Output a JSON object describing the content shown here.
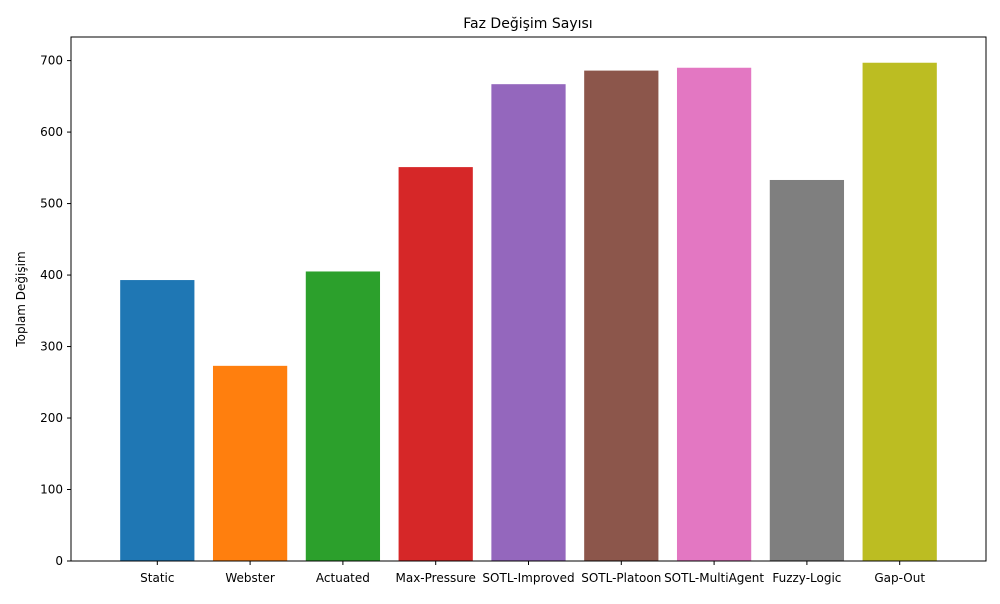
{
  "chart_data": {
    "type": "bar",
    "title": "Faz Değişim Sayısı",
    "xlabel": "",
    "ylabel": "Toplam Değişim",
    "categories": [
      "Static",
      "Webster",
      "Actuated",
      "Max-Pressure",
      "SOTL-Improved",
      "SOTL-Platoon",
      "SOTL-MultiAgent",
      "Fuzzy-Logic",
      "Gap-Out"
    ],
    "values": [
      393,
      273,
      405,
      551,
      667,
      686,
      690,
      533,
      697
    ],
    "colors": [
      "#1f77b4",
      "#ff7f0e",
      "#2ca02c",
      "#d62728",
      "#9467bd",
      "#8c564b",
      "#e377c2",
      "#7f7f7f",
      "#bcbd22"
    ],
    "ylim": [
      0,
      733
    ],
    "yticks": [
      0,
      100,
      200,
      300,
      400,
      500,
      600,
      700
    ],
    "grid": false,
    "legend": "none"
  }
}
